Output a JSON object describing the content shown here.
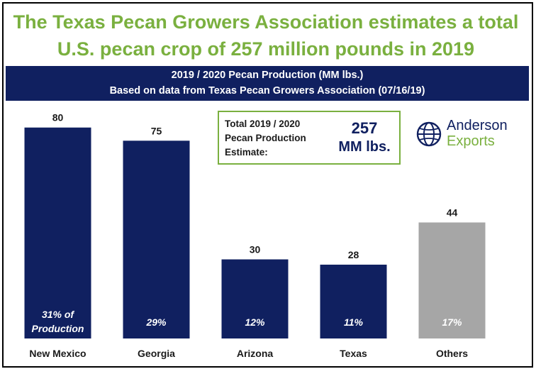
{
  "headline": {
    "line1": "The Texas Pecan Growers Association estimates a total",
    "line2": "U.S. pecan crop of 257 million pounds in 2019"
  },
  "banner": {
    "line1": "2019 / 2020 Pecan Production (MM lbs.)",
    "line2": "Based on data from Texas Pecan Growers Association (07/16/19)"
  },
  "callout": {
    "label_line1": "Total 2019 / 2020",
    "label_line2": "Pecan Production",
    "label_line3": "Estimate:",
    "value": "257",
    "unit": "MM lbs."
  },
  "logo": {
    "line1": "Anderson",
    "line2": "Exports",
    "icon": "globe-icon"
  },
  "colors": {
    "title_green": "#7ab03f",
    "navy": "#102060",
    "gray": "#a6a6a6"
  },
  "chart_data": {
    "type": "bar",
    "title": "2019 / 2020 Pecan Production (MM lbs.)",
    "categories": [
      "New Mexico",
      "Georgia",
      "Arizona",
      "Texas",
      "Others"
    ],
    "values": [
      80,
      75,
      30,
      28,
      44
    ],
    "shares": [
      "31% of Production",
      "29%",
      "12%",
      "11%",
      "17%"
    ],
    "bar_colors": [
      "#102060",
      "#102060",
      "#102060",
      "#102060",
      "#a6a6a6"
    ],
    "ylim": [
      0,
      88
    ],
    "xlabel": "",
    "ylabel": "",
    "grid": false
  }
}
